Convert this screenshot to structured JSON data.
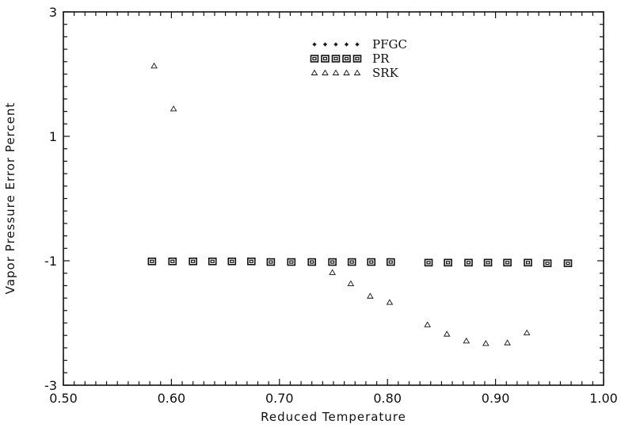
{
  "chart_data": {
    "type": "scatter",
    "title": "",
    "xlabel": "Reduced Temperature",
    "ylabel": "Vapor Pressure Error Percent",
    "xlim": [
      0.5,
      1.0
    ],
    "ylim": [
      -3,
      3
    ],
    "x_ticks": [
      0.5,
      0.6,
      0.7,
      0.8,
      0.9,
      1.0
    ],
    "x_tick_labels": [
      "0.50",
      "0.60",
      "0.70",
      "0.80",
      "0.90",
      "1.00"
    ],
    "y_ticks": [
      -3,
      -1,
      1,
      3
    ],
    "y_tick_labels": [
      "-3",
      "-1",
      "1",
      "3"
    ],
    "grid": false,
    "legend_position": "top-center",
    "series": [
      {
        "name": "PFGC",
        "marker": "star",
        "x": [],
        "y": []
      },
      {
        "name": "PR",
        "marker": "square",
        "x": [
          0.582,
          0.601,
          0.62,
          0.638,
          0.656,
          0.674,
          0.692,
          0.711,
          0.73,
          0.749,
          0.767,
          0.785,
          0.803,
          0.838,
          0.856,
          0.875,
          0.893,
          0.911,
          0.93,
          0.948,
          0.967
        ],
        "y": [
          -1.01,
          -1.01,
          -1.01,
          -1.01,
          -1.01,
          -1.01,
          -1.02,
          -1.02,
          -1.02,
          -1.02,
          -1.02,
          -1.02,
          -1.02,
          -1.03,
          -1.03,
          -1.03,
          -1.03,
          -1.03,
          -1.03,
          -1.04,
          -1.04
        ]
      },
      {
        "name": "SRK",
        "marker": "triangle",
        "x": [
          0.584,
          0.602,
          0.749,
          0.766,
          0.784,
          0.802,
          0.837,
          0.855,
          0.873,
          0.891,
          0.911,
          0.929
        ],
        "y": [
          2.13,
          1.44,
          -1.19,
          -1.37,
          -1.57,
          -1.67,
          -2.03,
          -2.18,
          -2.29,
          -2.33,
          -2.32,
          -2.16
        ]
      }
    ]
  }
}
